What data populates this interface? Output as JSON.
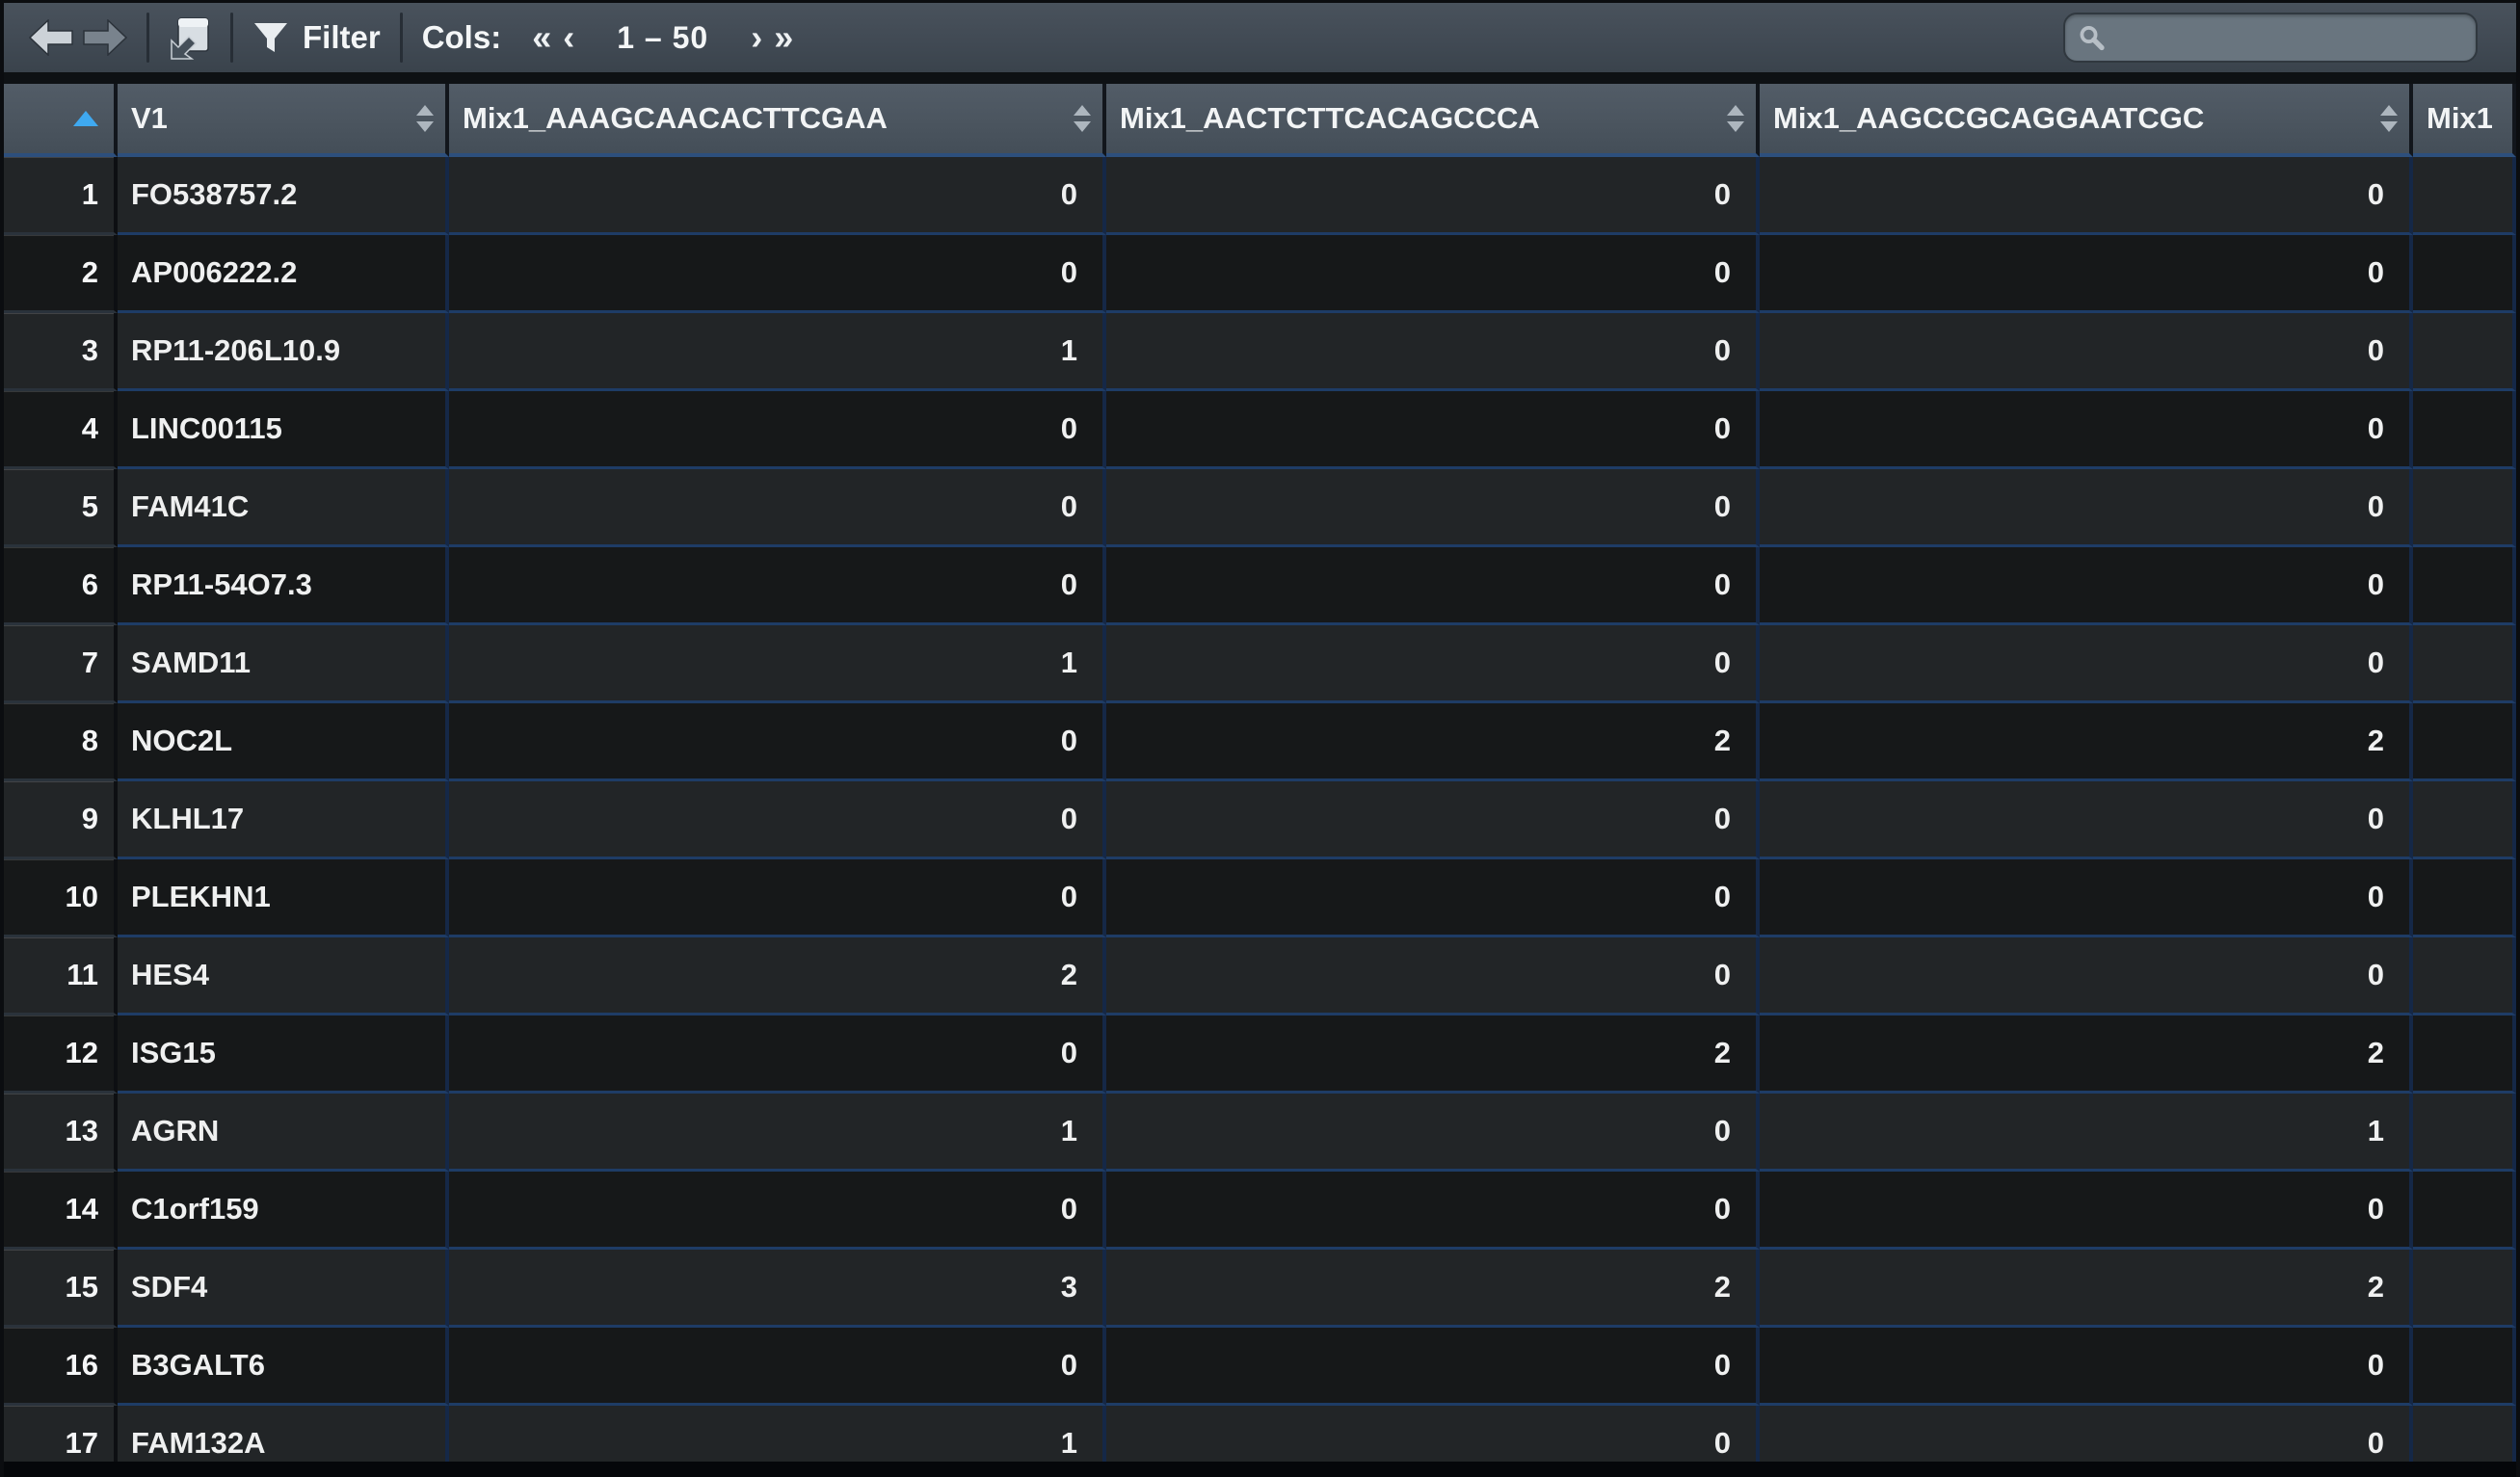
{
  "toolbar": {
    "filter_label": "Filter",
    "cols_label": "Cols:",
    "pagination": {
      "first": "«",
      "prev": "‹",
      "range": "1 – 50",
      "next": "›",
      "last": "»"
    },
    "search": {
      "value": "",
      "placeholder": ""
    }
  },
  "table": {
    "corner_sort": "ascending",
    "columns": [
      {
        "label": "V1",
        "sortable": true
      },
      {
        "label": "Mix1_AAAGCAACACTTCGAA",
        "sortable": true
      },
      {
        "label": "Mix1_AACTCTTCACAGCCCA",
        "sortable": true
      },
      {
        "label": "Mix1_AAGCCGCAGGAATCGC",
        "sortable": true
      },
      {
        "label": "Mix1",
        "sortable": false,
        "truncated": true
      }
    ],
    "rows": [
      {
        "num": 1,
        "gene": "FO538757.2",
        "values": [
          0,
          0,
          0
        ]
      },
      {
        "num": 2,
        "gene": "AP006222.2",
        "values": [
          0,
          0,
          0
        ]
      },
      {
        "num": 3,
        "gene": "RP11-206L10.9",
        "values": [
          1,
          0,
          0
        ]
      },
      {
        "num": 4,
        "gene": "LINC00115",
        "values": [
          0,
          0,
          0
        ]
      },
      {
        "num": 5,
        "gene": "FAM41C",
        "values": [
          0,
          0,
          0
        ]
      },
      {
        "num": 6,
        "gene": "RP11-54O7.3",
        "values": [
          0,
          0,
          0
        ]
      },
      {
        "num": 7,
        "gene": "SAMD11",
        "values": [
          1,
          0,
          0
        ]
      },
      {
        "num": 8,
        "gene": "NOC2L",
        "values": [
          0,
          2,
          2
        ]
      },
      {
        "num": 9,
        "gene": "KLHL17",
        "values": [
          0,
          0,
          0
        ]
      },
      {
        "num": 10,
        "gene": "PLEKHN1",
        "values": [
          0,
          0,
          0
        ]
      },
      {
        "num": 11,
        "gene": "HES4",
        "values": [
          2,
          0,
          0
        ]
      },
      {
        "num": 12,
        "gene": "ISG15",
        "values": [
          0,
          2,
          2
        ]
      },
      {
        "num": 13,
        "gene": "AGRN",
        "values": [
          1,
          0,
          1
        ]
      },
      {
        "num": 14,
        "gene": "C1orf159",
        "values": [
          0,
          0,
          0
        ]
      },
      {
        "num": 15,
        "gene": "SDF4",
        "values": [
          3,
          2,
          2
        ]
      },
      {
        "num": 16,
        "gene": "B3GALT6",
        "values": [
          0,
          0,
          0
        ]
      },
      {
        "num": 17,
        "gene": "FAM132A",
        "values": [
          1,
          0,
          0
        ]
      }
    ]
  },
  "colors": {
    "sort_indicator_blue": "#3fa9f0",
    "grid_line_navy": "#1e3c66",
    "header_background": "#4b555f",
    "toolbar_background": "#414a54",
    "cell_background_dark": "#161819",
    "cell_background_light": "#222527"
  }
}
